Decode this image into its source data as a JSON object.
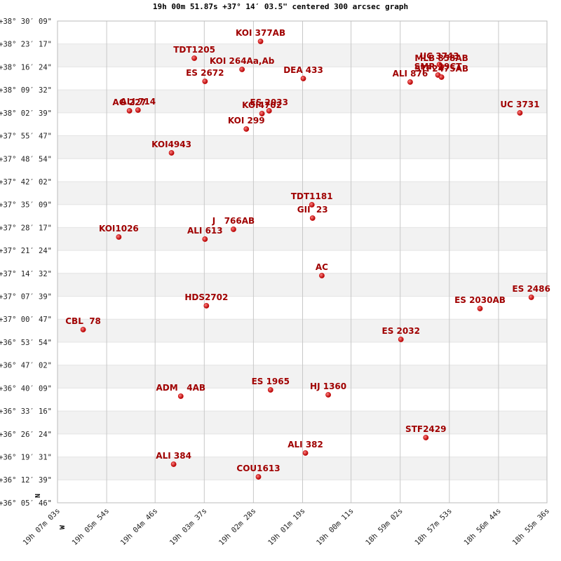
{
  "chart_data": {
    "type": "scatter",
    "title": "19h 00m 51.87s +37° 14′ 03.5\" centered 300 arcsec graph",
    "x_axis_label": "W",
    "y_axis_label": "N",
    "color": "#cc0000",
    "label_color": "#a00000",
    "grid": true,
    "xlim": [
      68823,
      68136
    ],
    "ylim": [
      129946,
      138609
    ],
    "xticks": [
      {
        "value": 68823,
        "label": "19h 07m 03s"
      },
      {
        "value": 68754,
        "label": "19h 05m 54s"
      },
      {
        "value": 68686,
        "label": "19h 04m 46s"
      },
      {
        "value": 68617,
        "label": "19h 03m 37s"
      },
      {
        "value": 68548,
        "label": "19h 02m 28s"
      },
      {
        "value": 68479,
        "label": "19h 01m 19s"
      },
      {
        "value": 68411,
        "label": "19h 00m 11s"
      },
      {
        "value": 68342,
        "label": "18h 59m 02s"
      },
      {
        "value": 68273,
        "label": "18h 57m 53s"
      },
      {
        "value": 68204,
        "label": "18h 56m 44s"
      },
      {
        "value": 68136,
        "label": "18h 55m 36s"
      }
    ],
    "yticks": [
      {
        "value": 138609,
        "label": "+38° 30′ 09\""
      },
      {
        "value": 138197,
        "label": "+38° 23′ 17\""
      },
      {
        "value": 137784,
        "label": "+38° 16′ 24\""
      },
      {
        "value": 137372,
        "label": "+38° 09′ 32\""
      },
      {
        "value": 136959,
        "label": "+38° 02′ 39\""
      },
      {
        "value": 136547,
        "label": "+37° 55′ 47\""
      },
      {
        "value": 136134,
        "label": "+37° 48′ 54\""
      },
      {
        "value": 135722,
        "label": "+37° 42′ 02\""
      },
      {
        "value": 135309,
        "label": "+37° 35′ 09\""
      },
      {
        "value": 134897,
        "label": "+37° 28′ 17\""
      },
      {
        "value": 134484,
        "label": "+37° 21′ 24\""
      },
      {
        "value": 134072,
        "label": "+37° 14′ 32\""
      },
      {
        "value": 133659,
        "label": "+37° 07′ 39\""
      },
      {
        "value": 133247,
        "label": "+37° 00′ 47\""
      },
      {
        "value": 132834,
        "label": "+36° 53′ 54\""
      },
      {
        "value": 132422,
        "label": "+36° 47′ 02\""
      },
      {
        "value": 132009,
        "label": "+36° 40′ 09\""
      },
      {
        "value": 131596,
        "label": "+36° 33′ 16\""
      },
      {
        "value": 131184,
        "label": "+36° 26′ 24\""
      },
      {
        "value": 130771,
        "label": "+36° 19′ 31\""
      },
      {
        "value": 130359,
        "label": "+36° 12′ 39\""
      },
      {
        "value": 129946,
        "label": "+36° 05′ 46\""
      }
    ],
    "point_labels": [
      "KOI 377AB",
      "TDT1205",
      "KOI 264Aa,Ab",
      "ES 2672",
      "DEA 433",
      "ALI 876",
      "UC 3743",
      "MLB 858AB",
      "SMR 19CT",
      "STF2475AB",
      "UC 3731",
      "AG 227",
      "ALI 714",
      "ES 2033",
      "KOI4702",
      "KOI 299",
      "KOI4943",
      "TDT1181",
      "GII  23",
      "J   766AB",
      "KOI1026",
      "ALI 613",
      "AC",
      "HDS2702",
      "ES 2486",
      "ES 2030AB",
      "CBL  78",
      "ES 2032",
      "ADM   4AB",
      "ES 1965",
      "HJ 1360",
      "STF2429",
      "ALI 382",
      "ALI 384",
      "COU1613"
    ],
    "x": [
      68538,
      68631,
      68564,
      68616,
      68478,
      68328,
      68287,
      68284,
      68289,
      68284,
      68174,
      68722,
      68710,
      68526,
      68536,
      68558,
      68663,
      68466,
      68465,
      68576,
      68737,
      68616,
      68452,
      68614,
      68158,
      68230,
      68787,
      68341,
      68650,
      68524,
      68443,
      68306,
      68475,
      68660,
      68541
    ],
    "values": [
      138243,
      137941,
      137739,
      137525,
      137575,
      137512,
      137827,
      137789,
      137638,
      137600,
      136957,
      136995,
      137008,
      136995,
      136944,
      136667,
      136238,
      135305,
      135066,
      134864,
      134725,
      134687,
      134032,
      133489,
      133641,
      133439,
      133061,
      132884,
      131863,
      131976,
      131888,
      131119,
      130841,
      130640,
      130412
    ]
  }
}
